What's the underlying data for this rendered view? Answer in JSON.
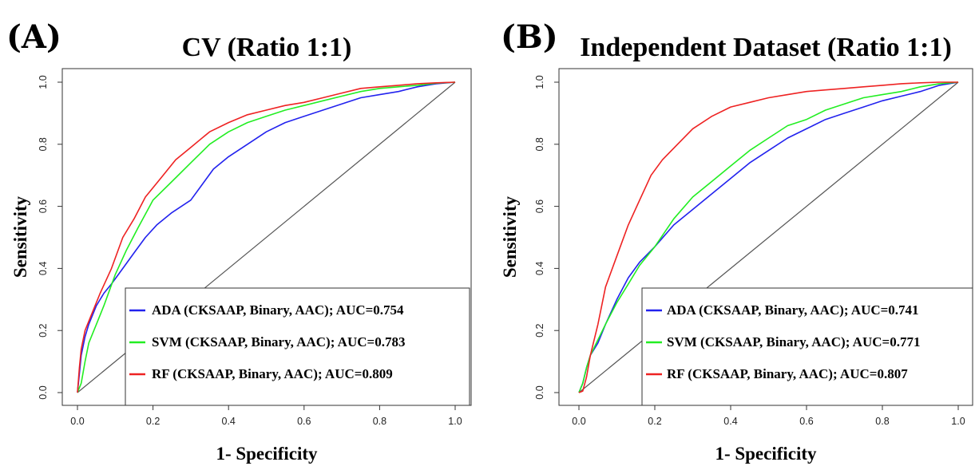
{
  "chart_data": [
    {
      "type": "line",
      "panel_label": "(A)",
      "title": "CV (Ratio 1:1)",
      "xlabel": "1- Specificity",
      "ylabel": "Sensitivity",
      "xlim": [
        0,
        1
      ],
      "ylim": [
        0,
        1
      ],
      "xticks": [
        "0.0",
        "0.2",
        "0.4",
        "0.6",
        "0.8",
        "1.0"
      ],
      "yticks": [
        "0.0",
        "0.2",
        "0.4",
        "0.6",
        "0.8",
        "1.0"
      ],
      "grid": false,
      "diagonal": true,
      "legend_position": "bottom-right",
      "series": [
        {
          "name": "ADA (CKSAAP, Binary, AAC); AUC=0.754",
          "color": "#2222ee",
          "points": [
            [
              0,
              0
            ],
            [
              0.005,
              0.06
            ],
            [
              0.01,
              0.12
            ],
            [
              0.02,
              0.18
            ],
            [
              0.03,
              0.22
            ],
            [
              0.05,
              0.28
            ],
            [
              0.07,
              0.32
            ],
            [
              0.09,
              0.35
            ],
            [
              0.12,
              0.4
            ],
            [
              0.15,
              0.45
            ],
            [
              0.18,
              0.5
            ],
            [
              0.21,
              0.54
            ],
            [
              0.25,
              0.58
            ],
            [
              0.3,
              0.62
            ],
            [
              0.33,
              0.67
            ],
            [
              0.36,
              0.72
            ],
            [
              0.4,
              0.76
            ],
            [
              0.45,
              0.8
            ],
            [
              0.5,
              0.84
            ],
            [
              0.55,
              0.87
            ],
            [
              0.6,
              0.89
            ],
            [
              0.65,
              0.91
            ],
            [
              0.7,
              0.93
            ],
            [
              0.75,
              0.95
            ],
            [
              0.8,
              0.96
            ],
            [
              0.85,
              0.97
            ],
            [
              0.9,
              0.985
            ],
            [
              0.95,
              0.995
            ],
            [
              1,
              1
            ]
          ]
        },
        {
          "name": "SVM (CKSAAP, Binary, AAC); AUC=0.783",
          "color": "#22ee22",
          "points": [
            [
              0,
              0
            ],
            [
              0.01,
              0.03
            ],
            [
              0.02,
              0.1
            ],
            [
              0.03,
              0.16
            ],
            [
              0.05,
              0.22
            ],
            [
              0.07,
              0.28
            ],
            [
              0.1,
              0.38
            ],
            [
              0.13,
              0.46
            ],
            [
              0.16,
              0.53
            ],
            [
              0.2,
              0.62
            ],
            [
              0.25,
              0.68
            ],
            [
              0.3,
              0.74
            ],
            [
              0.35,
              0.8
            ],
            [
              0.4,
              0.84
            ],
            [
              0.45,
              0.87
            ],
            [
              0.5,
              0.89
            ],
            [
              0.55,
              0.91
            ],
            [
              0.6,
              0.925
            ],
            [
              0.65,
              0.94
            ],
            [
              0.7,
              0.955
            ],
            [
              0.75,
              0.97
            ],
            [
              0.8,
              0.98
            ],
            [
              0.85,
              0.985
            ],
            [
              0.9,
              0.99
            ],
            [
              0.95,
              0.997
            ],
            [
              1,
              1
            ]
          ]
        },
        {
          "name": "RF (CKSAAP, Binary, AAC); AUC=0.809",
          "color": "#ee2222",
          "points": [
            [
              0,
              0
            ],
            [
              0.005,
              0.08
            ],
            [
              0.01,
              0.14
            ],
            [
              0.02,
              0.2
            ],
            [
              0.04,
              0.26
            ],
            [
              0.06,
              0.32
            ],
            [
              0.09,
              0.4
            ],
            [
              0.12,
              0.5
            ],
            [
              0.15,
              0.56
            ],
            [
              0.18,
              0.63
            ],
            [
              0.22,
              0.69
            ],
            [
              0.26,
              0.75
            ],
            [
              0.3,
              0.79
            ],
            [
              0.35,
              0.84
            ],
            [
              0.4,
              0.87
            ],
            [
              0.45,
              0.895
            ],
            [
              0.5,
              0.91
            ],
            [
              0.55,
              0.925
            ],
            [
              0.6,
              0.935
            ],
            [
              0.65,
              0.95
            ],
            [
              0.7,
              0.965
            ],
            [
              0.75,
              0.98
            ],
            [
              0.8,
              0.985
            ],
            [
              0.85,
              0.99
            ],
            [
              0.9,
              0.995
            ],
            [
              0.95,
              0.998
            ],
            [
              1,
              1
            ]
          ]
        }
      ]
    },
    {
      "type": "line",
      "panel_label": "(B)",
      "title": "Independent Dataset (Ratio 1:1)",
      "xlabel": "1- Specificity",
      "ylabel": "Sensitivity",
      "xlim": [
        0,
        1
      ],
      "ylim": [
        0,
        1
      ],
      "xticks": [
        "0.0",
        "0.2",
        "0.4",
        "0.6",
        "0.8",
        "1.0"
      ],
      "yticks": [
        "0.0",
        "0.2",
        "0.4",
        "0.6",
        "0.8",
        "1.0"
      ],
      "grid": false,
      "diagonal": true,
      "legend_position": "bottom-right",
      "series": [
        {
          "name": "ADA (CKSAAP, Binary, AAC); AUC=0.741",
          "color": "#2222ee",
          "points": [
            [
              0,
              0
            ],
            [
              0.01,
              0.03
            ],
            [
              0.02,
              0.08
            ],
            [
              0.03,
              0.12
            ],
            [
              0.05,
              0.16
            ],
            [
              0.07,
              0.22
            ],
            [
              0.1,
              0.3
            ],
            [
              0.13,
              0.37
            ],
            [
              0.16,
              0.42
            ],
            [
              0.2,
              0.47
            ],
            [
              0.25,
              0.54
            ],
            [
              0.3,
              0.59
            ],
            [
              0.35,
              0.64
            ],
            [
              0.4,
              0.69
            ],
            [
              0.45,
              0.74
            ],
            [
              0.5,
              0.78
            ],
            [
              0.55,
              0.82
            ],
            [
              0.6,
              0.85
            ],
            [
              0.65,
              0.88
            ],
            [
              0.7,
              0.9
            ],
            [
              0.75,
              0.92
            ],
            [
              0.8,
              0.94
            ],
            [
              0.85,
              0.955
            ],
            [
              0.9,
              0.97
            ],
            [
              0.95,
              0.99
            ],
            [
              1,
              1
            ]
          ]
        },
        {
          "name": "SVM (CKSAAP, Binary, AAC); AUC=0.771",
          "color": "#22ee22",
          "points": [
            [
              0,
              0
            ],
            [
              0.01,
              0.03
            ],
            [
              0.02,
              0.08
            ],
            [
              0.03,
              0.12
            ],
            [
              0.05,
              0.17
            ],
            [
              0.07,
              0.22
            ],
            [
              0.1,
              0.29
            ],
            [
              0.13,
              0.35
            ],
            [
              0.16,
              0.41
            ],
            [
              0.2,
              0.47
            ],
            [
              0.25,
              0.56
            ],
            [
              0.3,
              0.63
            ],
            [
              0.35,
              0.68
            ],
            [
              0.4,
              0.73
            ],
            [
              0.45,
              0.78
            ],
            [
              0.5,
              0.82
            ],
            [
              0.55,
              0.86
            ],
            [
              0.6,
              0.88
            ],
            [
              0.65,
              0.91
            ],
            [
              0.7,
              0.93
            ],
            [
              0.75,
              0.95
            ],
            [
              0.8,
              0.96
            ],
            [
              0.85,
              0.97
            ],
            [
              0.9,
              0.985
            ],
            [
              0.95,
              0.995
            ],
            [
              1,
              1
            ]
          ]
        },
        {
          "name": "RF (CKSAAP, Binary, AAC); AUC=0.807",
          "color": "#ee2222",
          "points": [
            [
              0,
              0
            ],
            [
              0.01,
              0.005
            ],
            [
              0.02,
              0.05
            ],
            [
              0.03,
              0.12
            ],
            [
              0.05,
              0.22
            ],
            [
              0.07,
              0.34
            ],
            [
              0.1,
              0.44
            ],
            [
              0.13,
              0.54
            ],
            [
              0.16,
              0.62
            ],
            [
              0.19,
              0.7
            ],
            [
              0.22,
              0.75
            ],
            [
              0.26,
              0.8
            ],
            [
              0.3,
              0.85
            ],
            [
              0.35,
              0.89
            ],
            [
              0.4,
              0.92
            ],
            [
              0.45,
              0.935
            ],
            [
              0.5,
              0.95
            ],
            [
              0.55,
              0.96
            ],
            [
              0.6,
              0.97
            ],
            [
              0.65,
              0.975
            ],
            [
              0.7,
              0.98
            ],
            [
              0.75,
              0.985
            ],
            [
              0.8,
              0.99
            ],
            [
              0.85,
              0.995
            ],
            [
              0.9,
              0.998
            ],
            [
              0.95,
              1
            ],
            [
              1,
              1
            ]
          ]
        }
      ]
    }
  ]
}
